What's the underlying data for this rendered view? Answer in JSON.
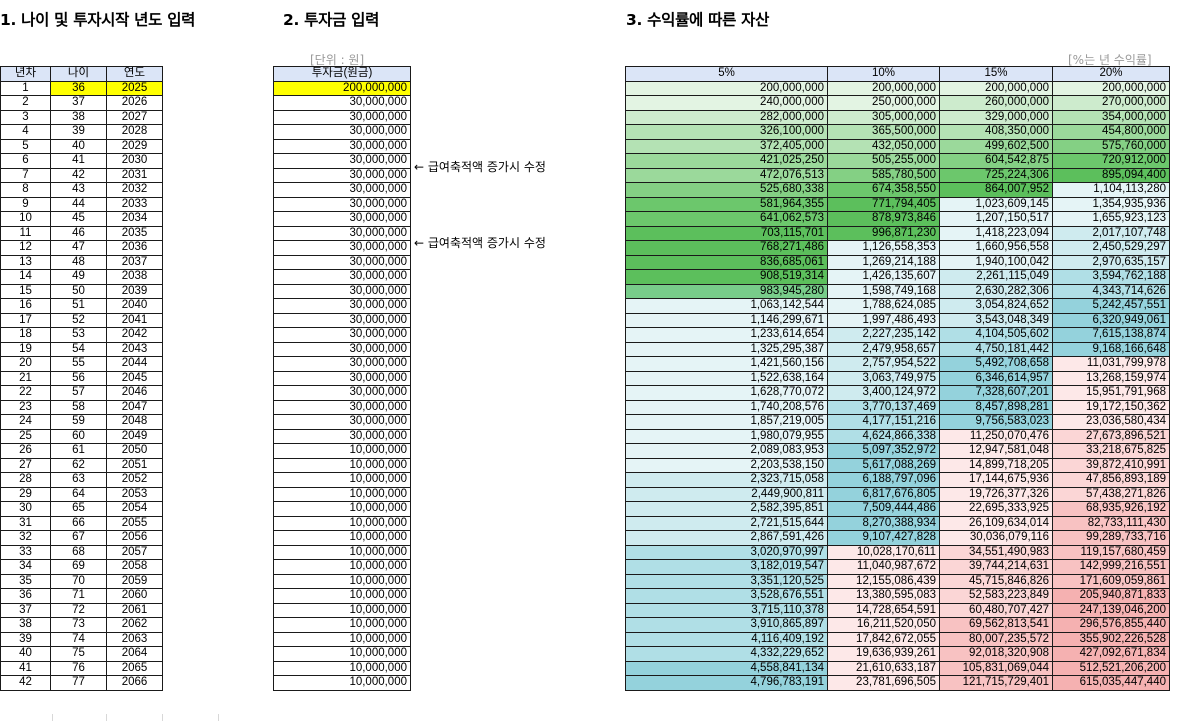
{
  "titles": {
    "s1": "1. 나이 및 투자시작 년도 입력",
    "s2": "2. 투자금 입력",
    "s3": "3. 수익률에 따른 자산"
  },
  "notes": {
    "unit": "[단위 : 원]",
    "rate": "[%는 년 수익률]"
  },
  "side_notes": [
    "← 급여축적액 증가시 수정",
    "← 급여축적액 증가시 수정"
  ],
  "table1": {
    "headers": [
      "년차",
      "나이",
      "연도"
    ],
    "rows": [
      [
        "1",
        "36",
        "2025"
      ],
      [
        "2",
        "37",
        "2026"
      ],
      [
        "3",
        "38",
        "2027"
      ],
      [
        "4",
        "39",
        "2028"
      ],
      [
        "5",
        "40",
        "2029"
      ],
      [
        "6",
        "41",
        "2030"
      ],
      [
        "7",
        "42",
        "2031"
      ],
      [
        "8",
        "43",
        "2032"
      ],
      [
        "9",
        "44",
        "2033"
      ],
      [
        "10",
        "45",
        "2034"
      ],
      [
        "11",
        "46",
        "2035"
      ],
      [
        "12",
        "47",
        "2036"
      ],
      [
        "13",
        "48",
        "2037"
      ],
      [
        "14",
        "49",
        "2038"
      ],
      [
        "15",
        "50",
        "2039"
      ],
      [
        "16",
        "51",
        "2040"
      ],
      [
        "17",
        "52",
        "2041"
      ],
      [
        "18",
        "53",
        "2042"
      ],
      [
        "19",
        "54",
        "2043"
      ],
      [
        "20",
        "55",
        "2044"
      ],
      [
        "21",
        "56",
        "2045"
      ],
      [
        "22",
        "57",
        "2046"
      ],
      [
        "23",
        "58",
        "2047"
      ],
      [
        "24",
        "59",
        "2048"
      ],
      [
        "25",
        "60",
        "2049"
      ],
      [
        "26",
        "61",
        "2050"
      ],
      [
        "27",
        "62",
        "2051"
      ],
      [
        "28",
        "63",
        "2052"
      ],
      [
        "29",
        "64",
        "2053"
      ],
      [
        "30",
        "65",
        "2054"
      ],
      [
        "31",
        "66",
        "2055"
      ],
      [
        "32",
        "67",
        "2056"
      ],
      [
        "33",
        "68",
        "2057"
      ],
      [
        "34",
        "69",
        "2058"
      ],
      [
        "35",
        "70",
        "2059"
      ],
      [
        "36",
        "71",
        "2060"
      ],
      [
        "37",
        "72",
        "2061"
      ],
      [
        "38",
        "73",
        "2062"
      ],
      [
        "39",
        "74",
        "2063"
      ],
      [
        "40",
        "75",
        "2064"
      ],
      [
        "41",
        "76",
        "2065"
      ],
      [
        "42",
        "77",
        "2066"
      ]
    ]
  },
  "table2": {
    "header": "투자금(원금)",
    "values": [
      "200,000,000",
      "30,000,000",
      "30,000,000",
      "30,000,000",
      "30,000,000",
      "30,000,000",
      "30,000,000",
      "30,000,000",
      "30,000,000",
      "30,000,000",
      "30,000,000",
      "30,000,000",
      "30,000,000",
      "30,000,000",
      "30,000,000",
      "30,000,000",
      "30,000,000",
      "30,000,000",
      "30,000,000",
      "30,000,000",
      "30,000,000",
      "30,000,000",
      "30,000,000",
      "30,000,000",
      "30,000,000",
      "10,000,000",
      "10,000,000",
      "10,000,000",
      "10,000,000",
      "10,000,000",
      "10,000,000",
      "10,000,000",
      "10,000,000",
      "10,000,000",
      "10,000,000",
      "10,000,000",
      "10,000,000",
      "10,000,000",
      "10,000,000",
      "10,000,000",
      "10,000,000",
      "10,000,000"
    ]
  },
  "table3": {
    "headers": [
      "5%",
      "10%",
      "15%",
      "20%"
    ],
    "palette": {
      "g1": "#e3f4e3",
      "g2": "#cdebcd",
      "g3": "#b4e2b4",
      "g4": "#9bd99b",
      "g5": "#84d084",
      "g6": "#6cc76c",
      "g7": "#5cbf5c",
      "g8": "#78cc8a",
      "t1": "#e5f4f6",
      "t2": "#cfebef",
      "t3": "#b0dfe6",
      "t4": "#94d2dc",
      "p1": "#fde8e8",
      "p2": "#fbd6d6",
      "p3": "#f8c2c2",
      "p4": "#f5b1b1"
    },
    "rows": [
      [
        [
          "200,000,000",
          "g1"
        ],
        [
          "200,000,000",
          "g1"
        ],
        [
          "200,000,000",
          "g1"
        ],
        [
          "200,000,000",
          "g1"
        ]
      ],
      [
        [
          "240,000,000",
          "g1"
        ],
        [
          "250,000,000",
          "g1"
        ],
        [
          "260,000,000",
          "g2"
        ],
        [
          "270,000,000",
          "g2"
        ]
      ],
      [
        [
          "282,000,000",
          "g2"
        ],
        [
          "305,000,000",
          "g2"
        ],
        [
          "329,000,000",
          "g2"
        ],
        [
          "354,000,000",
          "g3"
        ]
      ],
      [
        [
          "326,100,000",
          "g3"
        ],
        [
          "365,500,000",
          "g3"
        ],
        [
          "408,350,000",
          "g3"
        ],
        [
          "454,800,000",
          "g4"
        ]
      ],
      [
        [
          "372,405,000",
          "g3"
        ],
        [
          "432,050,000",
          "g3"
        ],
        [
          "499,602,500",
          "g4"
        ],
        [
          "575,760,000",
          "g5"
        ]
      ],
      [
        [
          "421,025,250",
          "g4"
        ],
        [
          "505,255,000",
          "g4"
        ],
        [
          "604,542,875",
          "g5"
        ],
        [
          "720,912,000",
          "g6"
        ]
      ],
      [
        [
          "472,076,513",
          "g4"
        ],
        [
          "585,780,500",
          "g5"
        ],
        [
          "725,224,306",
          "g6"
        ],
        [
          "895,094,400",
          "g7"
        ]
      ],
      [
        [
          "525,680,338",
          "g5"
        ],
        [
          "674,358,550",
          "g6"
        ],
        [
          "864,007,952",
          "g7"
        ],
        [
          "1,104,113,280",
          "t1"
        ]
      ],
      [
        [
          "581,964,355",
          "g6"
        ],
        [
          "771,794,405",
          "g7"
        ],
        [
          "1,023,609,145",
          "t1"
        ],
        [
          "1,354,935,936",
          "t1"
        ]
      ],
      [
        [
          "641,062,573",
          "g6"
        ],
        [
          "878,973,846",
          "g7"
        ],
        [
          "1,207,150,517",
          "t1"
        ],
        [
          "1,655,923,123",
          "t1"
        ]
      ],
      [
        [
          "703,115,701",
          "g7"
        ],
        [
          "996,871,230",
          "g7"
        ],
        [
          "1,418,223,094",
          "t1"
        ],
        [
          "2,017,107,748",
          "t2"
        ]
      ],
      [
        [
          "768,271,486",
          "g7"
        ],
        [
          "1,126,558,353",
          "t1"
        ],
        [
          "1,660,956,558",
          "t1"
        ],
        [
          "2,450,529,297",
          "t2"
        ]
      ],
      [
        [
          "836,685,061",
          "g7"
        ],
        [
          "1,269,214,188",
          "t1"
        ],
        [
          "1,940,100,042",
          "t1"
        ],
        [
          "2,970,635,157",
          "t2"
        ]
      ],
      [
        [
          "908,519,314",
          "g7"
        ],
        [
          "1,426,135,607",
          "t1"
        ],
        [
          "2,261,115,049",
          "t2"
        ],
        [
          "3,594,762,188",
          "t3"
        ]
      ],
      [
        [
          "983,945,280",
          "g8"
        ],
        [
          "1,598,749,168",
          "t1"
        ],
        [
          "2,630,282,306",
          "t2"
        ],
        [
          "4,343,714,626",
          "t3"
        ]
      ],
      [
        [
          "1,063,142,544",
          "t1"
        ],
        [
          "1,788,624,085",
          "t1"
        ],
        [
          "3,054,824,652",
          "t2"
        ],
        [
          "5,242,457,551",
          "t4"
        ]
      ],
      [
        [
          "1,146,299,671",
          "t1"
        ],
        [
          "1,997,486,493",
          "t1"
        ],
        [
          "3,543,048,349",
          "t2"
        ],
        [
          "6,320,949,061",
          "t4"
        ]
      ],
      [
        [
          "1,233,614,654",
          "t1"
        ],
        [
          "2,227,235,142",
          "t2"
        ],
        [
          "4,104,505,602",
          "t3"
        ],
        [
          "7,615,138,874",
          "t4"
        ]
      ],
      [
        [
          "1,325,295,387",
          "t1"
        ],
        [
          "2,479,958,657",
          "t2"
        ],
        [
          "4,750,181,442",
          "t3"
        ],
        [
          "9,168,166,648",
          "t4"
        ]
      ],
      [
        [
          "1,421,560,156",
          "t1"
        ],
        [
          "2,757,954,522",
          "t2"
        ],
        [
          "5,492,708,658",
          "t4"
        ],
        [
          "11,031,799,978",
          "p1"
        ]
      ],
      [
        [
          "1,522,638,164",
          "t1"
        ],
        [
          "3,063,749,975",
          "t2"
        ],
        [
          "6,346,614,957",
          "t4"
        ],
        [
          "13,268,159,974",
          "p1"
        ]
      ],
      [
        [
          "1,628,770,072",
          "t1"
        ],
        [
          "3,400,124,972",
          "t2"
        ],
        [
          "7,328,607,201",
          "t4"
        ],
        [
          "15,951,791,968",
          "p1"
        ]
      ],
      [
        [
          "1,740,208,576",
          "t1"
        ],
        [
          "3,770,137,469",
          "t3"
        ],
        [
          "8,457,898,281",
          "t4"
        ],
        [
          "19,172,150,362",
          "p1"
        ]
      ],
      [
        [
          "1,857,219,005",
          "t1"
        ],
        [
          "4,177,151,216",
          "t3"
        ],
        [
          "9,756,583,023",
          "t4"
        ],
        [
          "23,036,580,434",
          "p1"
        ]
      ],
      [
        [
          "1,980,079,955",
          "t1"
        ],
        [
          "4,624,866,338",
          "t3"
        ],
        [
          "11,250,070,476",
          "p1"
        ],
        [
          "27,673,896,521",
          "p2"
        ]
      ],
      [
        [
          "2,089,083,953",
          "t1"
        ],
        [
          "5,097,352,972",
          "t4"
        ],
        [
          "12,947,581,048",
          "p1"
        ],
        [
          "33,218,675,825",
          "p2"
        ]
      ],
      [
        [
          "2,203,538,150",
          "t1"
        ],
        [
          "5,617,088,269",
          "t4"
        ],
        [
          "14,899,718,205",
          "p1"
        ],
        [
          "39,872,410,991",
          "p2"
        ]
      ],
      [
        [
          "2,323,715,058",
          "t2"
        ],
        [
          "6,188,797,096",
          "t4"
        ],
        [
          "17,144,675,936",
          "p1"
        ],
        [
          "47,856,893,189",
          "p2"
        ]
      ],
      [
        [
          "2,449,900,811",
          "t2"
        ],
        [
          "6,817,676,805",
          "t4"
        ],
        [
          "19,726,377,326",
          "p1"
        ],
        [
          "57,438,271,826",
          "p2"
        ]
      ],
      [
        [
          "2,582,395,851",
          "t2"
        ],
        [
          "7,509,444,486",
          "t4"
        ],
        [
          "22,695,333,925",
          "p1"
        ],
        [
          "68,935,926,192",
          "p3"
        ]
      ],
      [
        [
          "2,721,515,644",
          "t2"
        ],
        [
          "8,270,388,934",
          "t4"
        ],
        [
          "26,109,634,014",
          "p1"
        ],
        [
          "82,733,111,430",
          "p3"
        ]
      ],
      [
        [
          "2,867,591,426",
          "t2"
        ],
        [
          "9,107,427,828",
          "t4"
        ],
        [
          "30,036,079,116",
          "p1"
        ],
        [
          "99,289,733,716",
          "p3"
        ]
      ],
      [
        [
          "3,020,970,997",
          "t3"
        ],
        [
          "10,028,170,611",
          "p1"
        ],
        [
          "34,551,490,983",
          "p2"
        ],
        [
          "119,157,680,459",
          "p3"
        ]
      ],
      [
        [
          "3,182,019,547",
          "t3"
        ],
        [
          "11,040,987,672",
          "p1"
        ],
        [
          "39,744,214,631",
          "p2"
        ],
        [
          "142,999,216,551",
          "p3"
        ]
      ],
      [
        [
          "3,351,120,525",
          "t3"
        ],
        [
          "12,155,086,439",
          "p1"
        ],
        [
          "45,715,846,826",
          "p2"
        ],
        [
          "171,609,059,861",
          "p3"
        ]
      ],
      [
        [
          "3,528,676,551",
          "t3"
        ],
        [
          "13,380,595,083",
          "p1"
        ],
        [
          "52,583,223,849",
          "p2"
        ],
        [
          "205,940,871,833",
          "p4"
        ]
      ],
      [
        [
          "3,715,110,378",
          "t3"
        ],
        [
          "14,728,654,591",
          "p1"
        ],
        [
          "60,480,707,427",
          "p2"
        ],
        [
          "247,139,046,200",
          "p4"
        ]
      ],
      [
        [
          "3,910,865,897",
          "t3"
        ],
        [
          "16,211,520,050",
          "p1"
        ],
        [
          "69,562,813,541",
          "p3"
        ],
        [
          "296,576,855,440",
          "p4"
        ]
      ],
      [
        [
          "4,116,409,192",
          "t3"
        ],
        [
          "17,842,672,055",
          "p1"
        ],
        [
          "80,007,235,572",
          "p3"
        ],
        [
          "355,902,226,528",
          "p4"
        ]
      ],
      [
        [
          "4,332,229,652",
          "t3"
        ],
        [
          "19,636,939,261",
          "p1"
        ],
        [
          "92,018,320,908",
          "p3"
        ],
        [
          "427,092,671,834",
          "p4"
        ]
      ],
      [
        [
          "4,558,841,134",
          "t4"
        ],
        [
          "21,610,633,187",
          "p1"
        ],
        [
          "105,831,069,044",
          "p3"
        ],
        [
          "512,521,206,200",
          "p4"
        ]
      ],
      [
        [
          "4,796,783,191",
          "t4"
        ],
        [
          "23,781,696,505",
          "p1"
        ],
        [
          "121,715,729,401",
          "p3"
        ],
        [
          "615,035,447,440",
          "p4"
        ]
      ]
    ]
  }
}
